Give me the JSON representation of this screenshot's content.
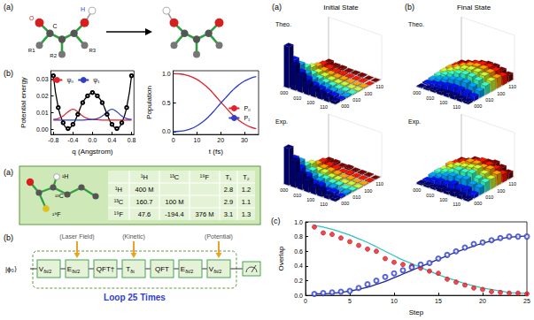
{
  "chart_data": [
    {
      "type": "line",
      "x_label": "q (Angstrom)",
      "y_label": "Potential energy",
      "x": [
        -0.8,
        -0.7,
        -0.6,
        -0.5,
        -0.4,
        -0.3,
        -0.2,
        -0.1,
        0,
        0.1,
        0.2,
        0.3,
        0.4,
        0.5,
        0.6,
        0.7,
        0.8
      ],
      "series": [
        {
          "color": "#000000",
          "marker": "circle-open",
          "values": [
            0.032,
            0.013,
            0.004,
            0.0005,
            0.003,
            0.009,
            0.016,
            0.02,
            0.022,
            0.02,
            0.016,
            0.009,
            0.003,
            0.0005,
            0.004,
            0.013,
            0.032
          ]
        },
        {
          "name": "ψ₀",
          "color": "#e0202a",
          "marker": "none",
          "values": [
            0.006,
            0.0065,
            0.008,
            0.0105,
            0.012,
            0.0105,
            0.008,
            0.0065,
            0.006,
            0.0058,
            0.0056,
            0.0055,
            0.0055,
            0.0055,
            0.0055,
            0.0055,
            0.0055
          ]
        },
        {
          "name": "ψ₁",
          "color": "#2f3fc8",
          "marker": "none",
          "values": [
            0.0055,
            0.0055,
            0.0055,
            0.0055,
            0.0055,
            0.0055,
            0.0056,
            0.0058,
            0.006,
            0.0065,
            0.008,
            0.0105,
            0.012,
            0.0105,
            0.008,
            0.0065,
            0.006
          ]
        }
      ],
      "xlim": [
        -0.85,
        0.85
      ],
      "xticks": [
        -0.8,
        -0.4,
        {
          "value": 0,
          "label": "0.0"
        },
        0.4,
        0.8
      ],
      "ylim": [
        -0.003,
        0.035
      ],
      "yticks": [
        {
          "value": 0,
          "label": "0.00"
        },
        0.01,
        0.02,
        0.03
      ],
      "grid": false,
      "legend": "top"
    },
    {
      "type": "line",
      "x_label": "t (fs)",
      "y_label": "Population",
      "x": [
        0,
        2.5,
        5,
        7.5,
        10,
        12.5,
        15,
        17.5,
        20,
        22.5,
        25,
        27.5,
        30,
        32.5,
        35
      ],
      "series": [
        {
          "name": "P₀",
          "color": "#e0202a",
          "marker": "none",
          "values": [
            1.0,
            0.995,
            0.98,
            0.95,
            0.9,
            0.83,
            0.74,
            0.63,
            0.51,
            0.4,
            0.29,
            0.2,
            0.13,
            0.08,
            0.05
          ]
        },
        {
          "name": "P₁",
          "color": "#2f3fc8",
          "marker": "none",
          "values": [
            0.0,
            0.005,
            0.02,
            0.05,
            0.1,
            0.17,
            0.26,
            0.37,
            0.49,
            0.6,
            0.71,
            0.8,
            0.87,
            0.92,
            0.95
          ]
        }
      ],
      "xlim": [
        0,
        36
      ],
      "xticks": [
        0,
        10,
        20,
        30
      ],
      "ylim": [
        -0.05,
        1.05
      ],
      "yticks": [
        {
          "value": 0,
          "label": "0.0"
        },
        0.5,
        {
          "value": 1,
          "label": "1.0"
        }
      ],
      "grid": false,
      "legend": "right"
    },
    {
      "type": "scatter",
      "x_label": "Step",
      "y_label": "Overlap",
      "x": [
        1,
        2,
        3,
        4,
        5,
        6,
        7,
        8,
        9,
        10,
        11,
        12,
        13,
        14,
        15,
        16,
        17,
        18,
        19,
        20,
        21,
        22,
        23,
        24,
        25
      ],
      "series": [
        {
          "type": "line",
          "color": "#2ec4c4",
          "marker": "none",
          "line_style": "solid",
          "values": [
            0.95,
            0.93,
            0.9,
            0.86,
            0.82,
            0.77,
            0.72,
            0.66,
            0.6,
            0.54,
            0.48,
            0.43,
            0.38,
            0.33,
            0.28,
            0.24,
            0.2,
            0.16,
            0.13,
            0.1,
            0.08,
            0.06,
            0.04,
            0.03,
            0.03
          ]
        },
        {
          "type": "line",
          "color": "#1f2a8a",
          "marker": "none",
          "line_style": "solid",
          "values": [
            0.02,
            0.02,
            0.03,
            0.04,
            0.06,
            0.08,
            0.11,
            0.15,
            0.19,
            0.24,
            0.29,
            0.34,
            0.39,
            0.44,
            0.49,
            0.54,
            0.59,
            0.63,
            0.67,
            0.71,
            0.74,
            0.77,
            0.79,
            0.8,
            0.81
          ]
        },
        {
          "type": "scatter",
          "color": "#e0202a",
          "marker": "circle",
          "values": [
            0.93,
            0.85,
            0.83,
            0.78,
            0.73,
            0.68,
            0.63,
            0.6,
            0.5,
            0.45,
            0.42,
            0.4,
            0.37,
            0.33,
            0.3,
            0.22,
            0.18,
            0.14,
            0.1,
            0.08,
            0.05,
            0.04,
            0.03,
            0.03,
            0.02
          ]
        },
        {
          "type": "scatter",
          "color": "#2f3fc8",
          "marker": "circle-open",
          "values": [
            0.02,
            0.03,
            0.04,
            0.05,
            0.06,
            0.1,
            0.15,
            0.2,
            0.25,
            0.3,
            0.34,
            0.38,
            0.42,
            0.44,
            0.5,
            0.55,
            0.6,
            0.65,
            0.7,
            0.72,
            0.75,
            0.78,
            0.8,
            0.8,
            0.8
          ]
        }
      ],
      "xlim": [
        0,
        25
      ],
      "xticks": [
        0,
        5,
        10,
        15,
        20,
        25
      ],
      "ylim": [
        0,
        1
      ],
      "yticks": [
        {
          "value": 0,
          "label": "0.0"
        },
        0.2,
        0.4,
        0.6,
        0.8,
        {
          "value": 1,
          "label": "1.0"
        }
      ],
      "grid": false
    }
  ],
  "panel_labels": {
    "potential": "(b)",
    "overlap": "(c)"
  },
  "reaction": {
    "label": "(a)",
    "atom_labels": {
      "O": "O",
      "H": "H",
      "C": "C",
      "R1": "R1",
      "R2": "R2",
      "R3": "R3"
    }
  },
  "nmr": {
    "label": "(a)",
    "molecule_labels": [
      "¹H",
      "¹³C",
      "¹⁹F"
    ],
    "header": [
      null,
      "¹H",
      "¹³C",
      "¹⁹F",
      "T₁",
      "T₂"
    ],
    "rows": [
      [
        "¹H",
        "400 M",
        null,
        null,
        2.8,
        1.2
      ],
      [
        "¹³C",
        160.7,
        "100 M",
        null,
        2.9,
        1.1
      ],
      [
        "¹⁹F",
        47.6,
        -194.4,
        "376 M",
        3.1,
        1.3
      ]
    ]
  },
  "circuit": {
    "label": "(b)",
    "input": "|ϕ₀⟩",
    "gates": [
      {
        "text": "V",
        "sub": "δt/2"
      },
      {
        "text": "E",
        "sub": "δt/2"
      },
      {
        "text": "QFT†"
      },
      {
        "text": "T",
        "sub": "δt"
      },
      {
        "text": "QFT"
      },
      {
        "text": "E",
        "sub": "δt/2"
      },
      {
        "text": "V",
        "sub": "δt/2"
      }
    ],
    "annotations": [
      {
        "text": "(Laser Field)",
        "gate": 1
      },
      {
        "text": "(Kinetic)",
        "gate": 3
      },
      {
        "text": "(Potential)",
        "gate": 6
      }
    ],
    "loop": "Loop 25 Times"
  },
  "density": {
    "rows": [
      "Theo.",
      "Exp."
    ],
    "tick_labels": [
      "000",
      null,
      "010",
      null,
      "100",
      null,
      "110",
      null
    ],
    "zlim": [
      0,
      0.6
    ],
    "panels": [
      {
        "label": "(a)",
        "title": "Initial State",
        "matrices": [
          [
            [
              0.56,
              0.34,
              0.23,
              0.15,
              0.11,
              0.08,
              0.06,
              0.04
            ],
            [
              0.34,
              0.2,
              0.14,
              0.09,
              0.07,
              0.05,
              0.04,
              0.02
            ],
            [
              0.23,
              0.14,
              0.09,
              0.06,
              0.05,
              0.03,
              0.02,
              0.02
            ],
            [
              0.15,
              0.09,
              0.06,
              0.04,
              0.03,
              0.02,
              0.02,
              0.01
            ],
            [
              0.11,
              0.07,
              0.05,
              0.03,
              0.02,
              0.02,
              0.01,
              0.01
            ],
            [
              0.08,
              0.05,
              0.03,
              0.02,
              0.02,
              0.01,
              0.01,
              0.01
            ],
            [
              0.06,
              0.04,
              0.02,
              0.02,
              0.01,
              0.01,
              0.01,
              0.0
            ],
            [
              0.04,
              0.02,
              0.02,
              0.01,
              0.01,
              0.01,
              0.0,
              0.0
            ]
          ],
          [
            [
              0.5,
              0.36,
              0.21,
              0.16,
              0.1,
              0.09,
              0.05,
              0.04
            ],
            [
              0.32,
              0.22,
              0.15,
              0.08,
              0.08,
              0.04,
              0.05,
              0.02
            ],
            [
              0.24,
              0.12,
              0.1,
              0.07,
              0.04,
              0.04,
              0.02,
              0.03
            ],
            [
              0.14,
              0.1,
              0.05,
              0.05,
              0.03,
              0.03,
              0.01,
              0.02
            ],
            [
              0.12,
              0.06,
              0.06,
              0.03,
              0.03,
              0.01,
              0.02,
              0.01
            ],
            [
              0.07,
              0.05,
              0.04,
              0.03,
              0.01,
              0.02,
              0.01,
              0.01
            ],
            [
              0.06,
              0.04,
              0.03,
              0.01,
              0.02,
              0.01,
              0.01,
              0.01
            ],
            [
              0.03,
              0.03,
              0.01,
              0.02,
              0.01,
              0.01,
              0.01,
              0.0
            ]
          ]
        ]
      },
      {
        "label": "(b)",
        "title": "Final State",
        "matrices": [
          [
            [
              0.01,
              0.02,
              0.03,
              0.04,
              0.05,
              0.05,
              0.04,
              0.03
            ],
            [
              0.02,
              0.04,
              0.06,
              0.08,
              0.09,
              0.09,
              0.08,
              0.06
            ],
            [
              0.03,
              0.06,
              0.09,
              0.12,
              0.14,
              0.14,
              0.12,
              0.09
            ],
            [
              0.04,
              0.08,
              0.12,
              0.16,
              0.18,
              0.18,
              0.16,
              0.12
            ],
            [
              0.05,
              0.09,
              0.14,
              0.18,
              0.2,
              0.2,
              0.18,
              0.14
            ],
            [
              0.05,
              0.09,
              0.14,
              0.18,
              0.2,
              0.2,
              0.18,
              0.14
            ],
            [
              0.04,
              0.08,
              0.12,
              0.16,
              0.18,
              0.18,
              0.16,
              0.12
            ],
            [
              0.03,
              0.06,
              0.09,
              0.12,
              0.14,
              0.14,
              0.12,
              0.09
            ]
          ],
          [
            [
              0.02,
              0.03,
              0.03,
              0.05,
              0.04,
              0.06,
              0.05,
              0.03
            ],
            [
              0.02,
              0.05,
              0.07,
              0.07,
              0.1,
              0.08,
              0.09,
              0.05
            ],
            [
              0.04,
              0.06,
              0.1,
              0.13,
              0.13,
              0.15,
              0.11,
              0.1
            ],
            [
              0.05,
              0.08,
              0.11,
              0.17,
              0.17,
              0.19,
              0.15,
              0.13
            ],
            [
              0.04,
              0.1,
              0.15,
              0.17,
              0.19,
              0.21,
              0.17,
              0.13
            ],
            [
              0.06,
              0.08,
              0.13,
              0.19,
              0.2,
              0.18,
              0.19,
              0.15
            ],
            [
              0.04,
              0.09,
              0.12,
              0.15,
              0.19,
              0.17,
              0.15,
              0.11
            ],
            [
              0.03,
              0.05,
              0.1,
              0.11,
              0.13,
              0.15,
              0.12,
              0.08
            ]
          ]
        ]
      }
    ]
  }
}
